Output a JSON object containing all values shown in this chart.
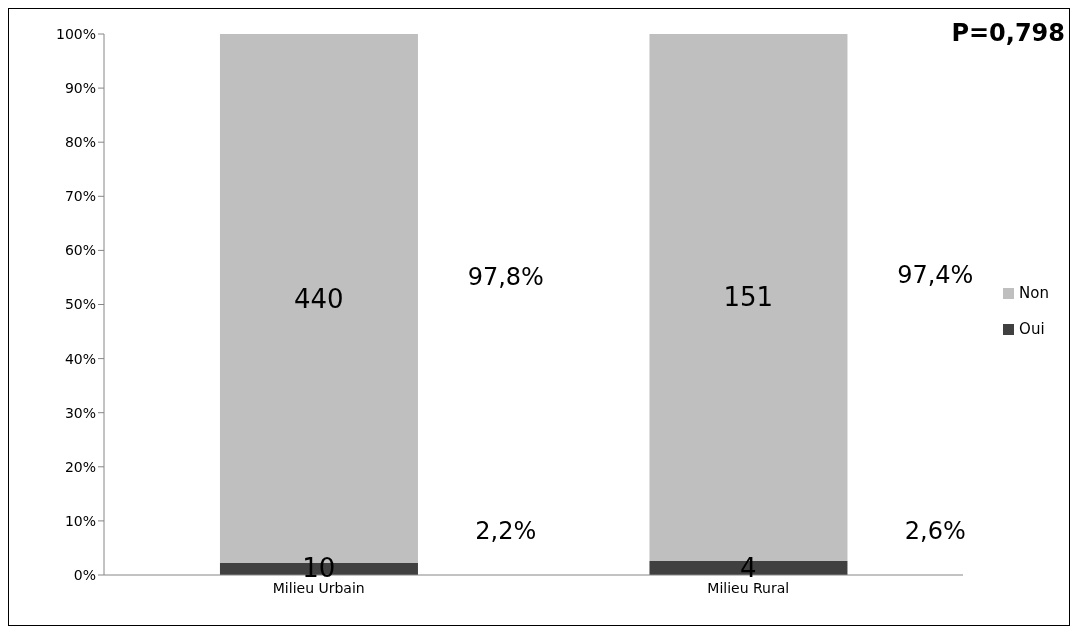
{
  "chart_data": {
    "type": "bar",
    "stacked": true,
    "categories": [
      "Milieu Urbain",
      "Milieu Rural"
    ],
    "series": [
      {
        "name": "Oui",
        "color": "#404040",
        "values": [
          2.2,
          2.6
        ]
      },
      {
        "name": "Non",
        "color": "#bfbfbf",
        "values": [
          97.8,
          97.4
        ]
      }
    ],
    "ylim": [
      0,
      100
    ],
    "yticks": [
      {
        "value": 0,
        "label": "0%"
      },
      {
        "value": 10,
        "label": "10%"
      },
      {
        "value": 20,
        "label": "20%"
      },
      {
        "value": 30,
        "label": "30%"
      },
      {
        "value": 40,
        "label": "40%"
      },
      {
        "value": 50,
        "label": "50%"
      },
      {
        "value": 60,
        "label": "60%"
      },
      {
        "value": 70,
        "label": "70%"
      },
      {
        "value": 80,
        "label": "80%"
      },
      {
        "value": 90,
        "label": "90%"
      },
      {
        "value": 100,
        "label": "100%"
      }
    ],
    "grid": false,
    "legend": "right",
    "annotations": [
      "P=0,798",
      "10",
      "4",
      "440",
      "151",
      "2,2%",
      "2,6%",
      "97,8%",
      "97,4%"
    ]
  }
}
